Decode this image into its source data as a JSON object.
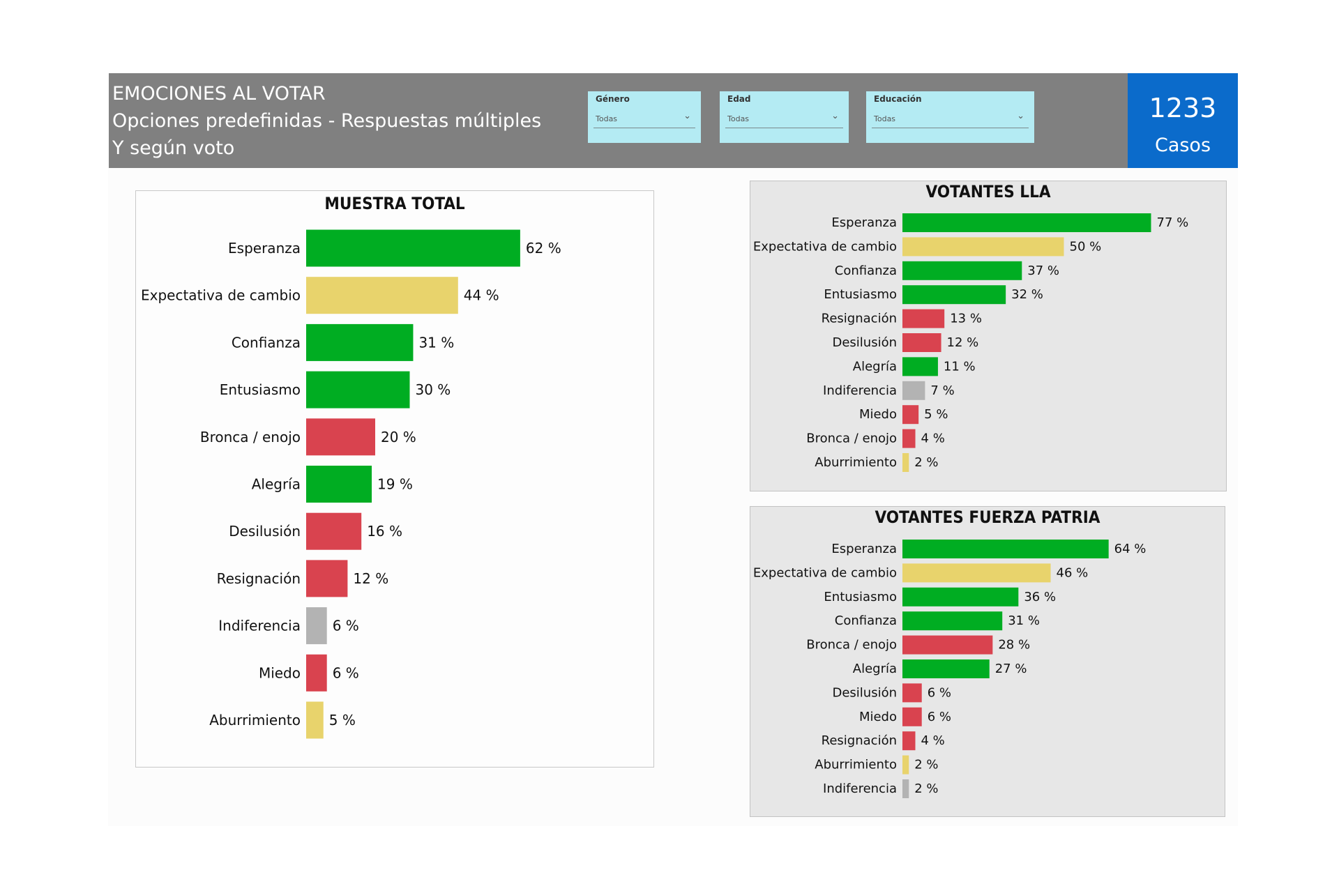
{
  "header": {
    "title_line1": "EMOCIONES AL VOTAR",
    "title_line2": "Opciones predefinidas - Respuestas múltiples",
    "title_line3": "Y según voto",
    "bg_color": "#808080"
  },
  "filters": [
    {
      "label": "Género",
      "value": "Todas",
      "icon": "chevron-down-icon"
    },
    {
      "label": "Edad",
      "value": "Todas",
      "icon": "chevron-down-icon"
    },
    {
      "label": "Educación",
      "value": "Todas",
      "icon": "chevron-down-icon"
    }
  ],
  "cases": {
    "count": "1233",
    "label": "Casos",
    "color": "#0b6bcb"
  },
  "colors": {
    "green": "#00ad22",
    "yellow": "#e8d36c",
    "red": "#d9434f",
    "grey": "#b3b3b3"
  },
  "chart_data": [
    {
      "type": "bar",
      "orientation": "horizontal",
      "title": "MUESTRA TOTAL",
      "unit": "%",
      "categories": [
        "Esperanza",
        "Expectativa de cambio",
        "Confianza",
        "Entusiasmo",
        "Bronca / enojo",
        "Alegría",
        "Desilusión",
        "Resignación",
        "Indiferencia",
        "Miedo",
        "Aburrimiento"
      ],
      "values": [
        62,
        44,
        31,
        30,
        20,
        19,
        16,
        12,
        6,
        6,
        5
      ],
      "value_labels": [
        "62 %",
        "44 %",
        "31 %",
        "30 %",
        "20 %",
        "19 %",
        "16 %",
        "12 %",
        "6 %",
        "6 %",
        "5 %"
      ],
      "bar_colors": [
        "green",
        "yellow",
        "green",
        "green",
        "red",
        "green",
        "red",
        "red",
        "grey",
        "red",
        "yellow"
      ],
      "grid": false
    },
    {
      "type": "bar",
      "orientation": "horizontal",
      "title": "VOTANTES LLA",
      "unit": "%",
      "categories": [
        "Esperanza",
        "Expectativa de cambio",
        "Confianza",
        "Entusiasmo",
        "Resignación",
        "Desilusión",
        "Alegría",
        "Indiferencia",
        "Miedo",
        "Bronca / enojo",
        "Aburrimiento"
      ],
      "values": [
        77,
        50,
        37,
        32,
        13,
        12,
        11,
        7,
        5,
        4,
        2
      ],
      "value_labels": [
        "77 %",
        "50 %",
        "37 %",
        "32 %",
        "13 %",
        "12 %",
        "11 %",
        "7 %",
        "5 %",
        "4 %",
        "2 %"
      ],
      "bar_colors": [
        "green",
        "yellow",
        "green",
        "green",
        "red",
        "red",
        "green",
        "grey",
        "red",
        "red",
        "yellow"
      ],
      "grid": false
    },
    {
      "type": "bar",
      "orientation": "horizontal",
      "title": "VOTANTES FUERZA PATRIA",
      "unit": "%",
      "categories": [
        "Esperanza",
        "Expectativa de cambio",
        "Entusiasmo",
        "Confianza",
        "Bronca / enojo",
        "Alegría",
        "Desilusión",
        "Miedo",
        "Resignación",
        "Aburrimiento",
        "Indiferencia"
      ],
      "values": [
        64,
        46,
        36,
        31,
        28,
        27,
        6,
        6,
        4,
        2,
        2
      ],
      "value_labels": [
        "64 %",
        "46 %",
        "36 %",
        "31 %",
        "28 %",
        "27 %",
        "6 %",
        "6 %",
        "4 %",
        "2 %",
        "2 %"
      ],
      "bar_colors": [
        "green",
        "yellow",
        "green",
        "green",
        "red",
        "green",
        "red",
        "red",
        "red",
        "yellow",
        "grey"
      ],
      "grid": false
    }
  ]
}
